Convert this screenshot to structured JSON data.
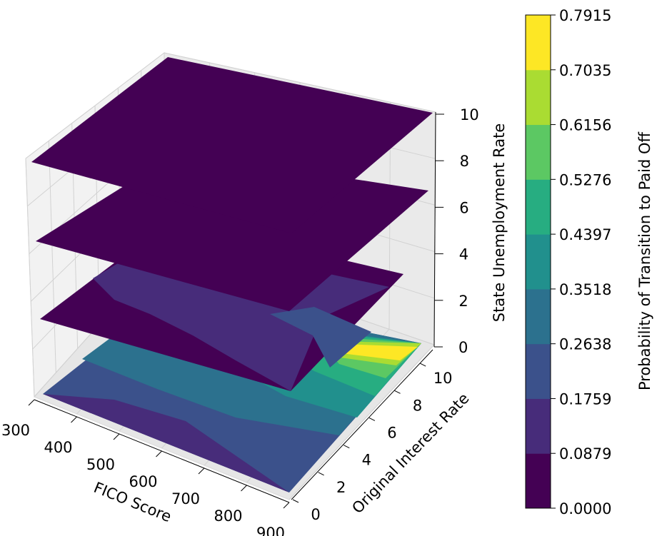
{
  "chart_data": {
    "type": "3d-contour-slices",
    "xlabel": "FICO Score",
    "ylabel": "Original Interest Rate",
    "zlabel": "State Unemployment Rate",
    "x_ticks": [
      "300",
      "400",
      "500",
      "600",
      "700",
      "800",
      "900"
    ],
    "y_ticks": [
      "0",
      "2",
      "4",
      "6",
      "8",
      "10"
    ],
    "z_ticks": [
      "0",
      "2",
      "4",
      "6",
      "8",
      "10"
    ],
    "xlim": [
      300,
      900
    ],
    "ylim": [
      0,
      11
    ],
    "zlim": [
      0,
      10
    ],
    "slices_z": [
      0,
      3,
      6,
      9
    ],
    "colorbar": {
      "label": "Probability of Transition to Paid Off",
      "levels": [
        "0.0000",
        "0.0879",
        "0.1759",
        "0.2638",
        "0.3518",
        "0.4397",
        "0.5276",
        "0.6156",
        "0.7035",
        "0.7915"
      ],
      "colors": [
        "#440154",
        "#472c7a",
        "#3b518b",
        "#2c718e",
        "#21908d",
        "#27ad81",
        "#5cc863",
        "#aadc32",
        "#fde725"
      ]
    }
  }
}
